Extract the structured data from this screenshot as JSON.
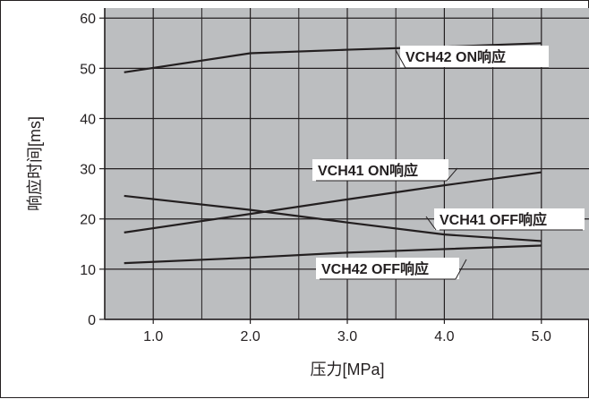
{
  "chart_data": {
    "type": "line",
    "title": "",
    "xlabel": "压力[MPa]",
    "ylabel": "响应时间[ms]",
    "xlim": [
      0.5,
      5.5
    ],
    "ylim": [
      0,
      62
    ],
    "x_ticks": [
      "1.0",
      "2.0",
      "3.0",
      "4.0",
      "5.0"
    ],
    "x_tick_values": [
      1.0,
      2.0,
      3.0,
      4.0,
      5.0
    ],
    "y_ticks": [
      "0",
      "10",
      "20",
      "30",
      "40",
      "50",
      "60"
    ],
    "y_tick_values": [
      0,
      10,
      20,
      30,
      40,
      50,
      60
    ],
    "grid": true,
    "grid_color": "#231f20",
    "plot_background": "#bcbec0",
    "line_color": "#231f20",
    "series": [
      {
        "name": "VCH42 ON响应",
        "x": [
          0.7,
          2.0,
          3.0,
          4.0,
          5.0
        ],
        "y": [
          49.2,
          53.0,
          53.7,
          54.3,
          55.0
        ]
      },
      {
        "name": "VCH41 ON响应",
        "x": [
          0.7,
          2.0,
          3.0,
          4.0,
          5.0
        ],
        "y": [
          17.3,
          21.0,
          23.9,
          26.7,
          29.3
        ]
      },
      {
        "name": "VCH41 OFF响应",
        "x": [
          0.7,
          2.0,
          3.0,
          4.0,
          5.0
        ],
        "y": [
          24.6,
          21.8,
          19.3,
          16.9,
          15.6
        ]
      },
      {
        "name": "VCH42 OFF响应",
        "x": [
          0.7,
          2.0,
          3.0,
          4.0,
          5.0
        ],
        "y": [
          11.2,
          12.3,
          13.3,
          14.0,
          14.7
        ]
      }
    ]
  }
}
